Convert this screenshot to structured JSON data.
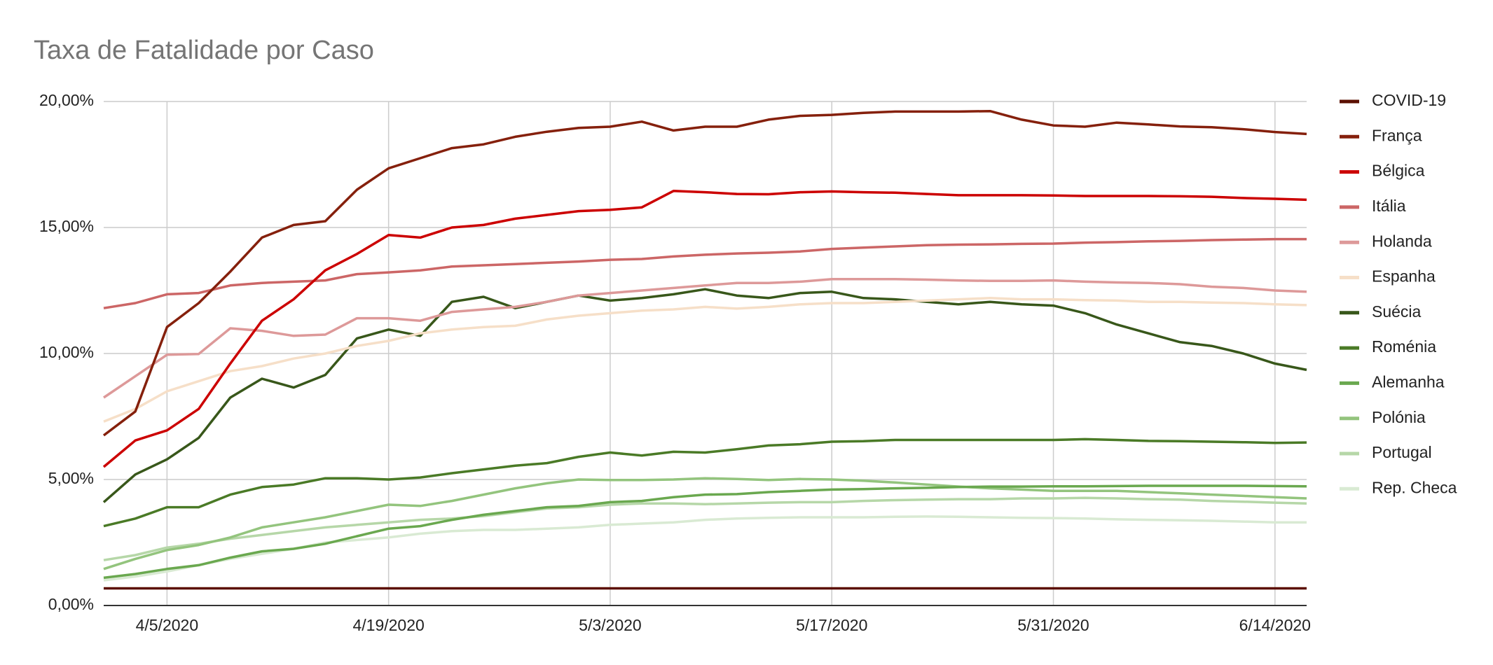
{
  "chart_data": {
    "type": "line",
    "title": "Taxa de Fatalidade por Caso",
    "x": [
      "4/1/2020",
      "4/3/2020",
      "4/5/2020",
      "4/7/2020",
      "4/9/2020",
      "4/11/2020",
      "4/13/2020",
      "4/15/2020",
      "4/17/2020",
      "4/19/2020",
      "4/21/2020",
      "4/23/2020",
      "4/25/2020",
      "4/27/2020",
      "4/29/2020",
      "5/1/2020",
      "5/3/2020",
      "5/5/2020",
      "5/7/2020",
      "5/9/2020",
      "5/11/2020",
      "5/13/2020",
      "5/15/2020",
      "5/17/2020",
      "5/19/2020",
      "5/21/2020",
      "5/23/2020",
      "5/25/2020",
      "5/27/2020",
      "5/29/2020",
      "5/31/2020",
      "6/2/2020",
      "6/4/2020",
      "6/6/2020",
      "6/8/2020",
      "6/10/2020",
      "6/12/2020",
      "6/14/2020",
      "6/16/2020"
    ],
    "xlim": [
      "4/1/2020",
      "6/16/2020"
    ],
    "xticks": [
      "4/5/2020",
      "4/19/2020",
      "5/3/2020",
      "5/17/2020",
      "5/31/2020",
      "6/14/2020"
    ],
    "ylim": [
      0,
      20
    ],
    "yticks": [
      {
        "value": 0,
        "label": "0,00%"
      },
      {
        "value": 5,
        "label": "5,00%"
      },
      {
        "value": 10,
        "label": "10,00%"
      },
      {
        "value": 15,
        "label": "15,00%"
      },
      {
        "value": 20,
        "label": "20,00%"
      }
    ],
    "grid": true,
    "legend": "right",
    "series": [
      {
        "name": "COVID-19",
        "color": "#5b0f00",
        "values": [
          0.68,
          0.68,
          0.68,
          0.68,
          0.68,
          0.68,
          0.68,
          0.68,
          0.68,
          0.68,
          0.68,
          0.68,
          0.68,
          0.68,
          0.68,
          0.68,
          0.68,
          0.68,
          0.68,
          0.68,
          0.68,
          0.68,
          0.68,
          0.68,
          0.68,
          0.68,
          0.68,
          0.68,
          0.68,
          0.68,
          0.68,
          0.68,
          0.68,
          0.68,
          0.68,
          0.68,
          0.68,
          0.68,
          0.68
        ]
      },
      {
        "name": "França",
        "color": "#85200c",
        "values": [
          6.75,
          7.7,
          11.05,
          12.0,
          13.25,
          14.6,
          15.1,
          15.25,
          16.5,
          17.35,
          17.75,
          18.15,
          18.3,
          18.6,
          18.8,
          18.95,
          19.0,
          19.2,
          18.85,
          19.0,
          19.0,
          19.28,
          19.43,
          19.47,
          19.55,
          19.6,
          19.6,
          19.6,
          19.62,
          19.28,
          19.05,
          19.0,
          19.16,
          19.09,
          19.01,
          18.98,
          18.9,
          18.79,
          18.71
        ]
      },
      {
        "name": "Bélgica",
        "color": "#cc0000",
        "values": [
          5.5,
          6.55,
          6.95,
          7.8,
          9.6,
          11.3,
          12.15,
          13.3,
          13.95,
          14.7,
          14.6,
          15.0,
          15.1,
          15.35,
          15.5,
          15.65,
          15.7,
          15.8,
          16.45,
          16.4,
          16.33,
          16.32,
          16.4,
          16.43,
          16.4,
          16.38,
          16.33,
          16.28,
          16.28,
          16.28,
          16.27,
          16.25,
          16.25,
          16.25,
          16.24,
          16.22,
          16.17,
          16.14,
          16.1
        ]
      },
      {
        "name": "Itália",
        "color": "#cc6666",
        "values": [
          11.8,
          12.0,
          12.35,
          12.4,
          12.7,
          12.8,
          12.85,
          12.9,
          13.15,
          13.22,
          13.3,
          13.45,
          13.5,
          13.55,
          13.6,
          13.65,
          13.72,
          13.75,
          13.85,
          13.92,
          13.97,
          14.0,
          14.05,
          14.15,
          14.2,
          14.25,
          14.3,
          14.32,
          14.33,
          14.35,
          14.36,
          14.4,
          14.42,
          14.45,
          14.47,
          14.5,
          14.52,
          14.54,
          14.54
        ]
      },
      {
        "name": "Holanda",
        "color": "#dd9999",
        "values": [
          8.25,
          9.1,
          9.95,
          9.98,
          11.0,
          10.9,
          10.7,
          10.75,
          11.4,
          11.4,
          11.3,
          11.65,
          11.75,
          11.85,
          12.05,
          12.3,
          12.4,
          12.5,
          12.6,
          12.7,
          12.8,
          12.8,
          12.85,
          12.95,
          12.95,
          12.95,
          12.93,
          12.9,
          12.88,
          12.88,
          12.9,
          12.85,
          12.82,
          12.8,
          12.75,
          12.65,
          12.6,
          12.5,
          12.45
        ]
      },
      {
        "name": "Espanha",
        "color": "#f6dfc8",
        "values": [
          7.3,
          7.8,
          8.5,
          8.9,
          9.3,
          9.5,
          9.8,
          10.0,
          10.3,
          10.5,
          10.8,
          10.95,
          11.05,
          11.1,
          11.35,
          11.5,
          11.6,
          11.7,
          11.75,
          11.85,
          11.78,
          11.85,
          11.95,
          12.0,
          12.0,
          12.05,
          12.1,
          12.15,
          12.2,
          12.15,
          12.15,
          12.12,
          12.1,
          12.05,
          12.05,
          12.02,
          12.0,
          11.95,
          11.92
        ]
      },
      {
        "name": "Suécia",
        "color": "#38571a",
        "values": [
          4.1,
          5.2,
          5.8,
          6.65,
          8.25,
          9.0,
          8.65,
          9.15,
          10.6,
          10.95,
          10.7,
          12.05,
          12.25,
          11.8,
          12.05,
          12.3,
          12.1,
          12.2,
          12.35,
          12.55,
          12.3,
          12.2,
          12.4,
          12.45,
          12.2,
          12.15,
          12.05,
          11.95,
          12.05,
          11.95,
          11.9,
          11.6,
          11.15,
          10.8,
          10.45,
          10.3,
          10.0,
          9.6,
          9.35
        ]
      },
      {
        "name": "Roménia",
        "color": "#4a7a26",
        "values": [
          3.15,
          3.45,
          3.9,
          3.9,
          4.4,
          4.7,
          4.8,
          5.05,
          5.05,
          5.0,
          5.08,
          5.25,
          5.4,
          5.55,
          5.65,
          5.9,
          6.07,
          5.95,
          6.1,
          6.07,
          6.2,
          6.35,
          6.4,
          6.5,
          6.52,
          6.57,
          6.57,
          6.57,
          6.57,
          6.57,
          6.57,
          6.6,
          6.57,
          6.53,
          6.52,
          6.5,
          6.48,
          6.45,
          6.47
        ]
      },
      {
        "name": "Alemanha",
        "color": "#6aa84f",
        "values": [
          1.1,
          1.25,
          1.45,
          1.6,
          1.9,
          2.15,
          2.25,
          2.45,
          2.75,
          3.05,
          3.15,
          3.4,
          3.6,
          3.75,
          3.9,
          3.95,
          4.1,
          4.15,
          4.3,
          4.4,
          4.42,
          4.5,
          4.55,
          4.6,
          4.62,
          4.65,
          4.67,
          4.7,
          4.72,
          4.72,
          4.73,
          4.73,
          4.74,
          4.75,
          4.75,
          4.75,
          4.75,
          4.74,
          4.73
        ]
      },
      {
        "name": "Polónia",
        "color": "#93c47d",
        "values": [
          1.45,
          1.85,
          2.2,
          2.4,
          2.7,
          3.1,
          3.3,
          3.5,
          3.75,
          4.0,
          3.95,
          4.15,
          4.4,
          4.65,
          4.85,
          5.0,
          4.98,
          4.98,
          5.0,
          5.05,
          5.02,
          4.98,
          5.02,
          5.0,
          4.95,
          4.88,
          4.8,
          4.72,
          4.65,
          4.6,
          4.55,
          4.55,
          4.55,
          4.5,
          4.45,
          4.4,
          4.35,
          4.3,
          4.25
        ]
      },
      {
        "name": "Portugal",
        "color": "#b6d7a8",
        "values": [
          1.8,
          2.0,
          2.3,
          2.45,
          2.65,
          2.8,
          2.95,
          3.1,
          3.2,
          3.3,
          3.4,
          3.45,
          3.55,
          3.7,
          3.85,
          3.9,
          4.0,
          4.05,
          4.05,
          4.02,
          4.05,
          4.08,
          4.1,
          4.1,
          4.15,
          4.18,
          4.2,
          4.22,
          4.22,
          4.25,
          4.25,
          4.27,
          4.25,
          4.22,
          4.2,
          4.15,
          4.12,
          4.08,
          4.05
        ]
      },
      {
        "name": "Rep. Checa",
        "color": "#d9ead3",
        "values": [
          1.0,
          1.15,
          1.35,
          1.6,
          1.85,
          2.05,
          2.25,
          2.5,
          2.6,
          2.7,
          2.85,
          2.95,
          3.0,
          3.0,
          3.05,
          3.1,
          3.2,
          3.25,
          3.3,
          3.4,
          3.45,
          3.48,
          3.5,
          3.5,
          3.5,
          3.52,
          3.53,
          3.52,
          3.5,
          3.48,
          3.47,
          3.45,
          3.42,
          3.4,
          3.38,
          3.36,
          3.33,
          3.3,
          3.3
        ]
      }
    ]
  }
}
